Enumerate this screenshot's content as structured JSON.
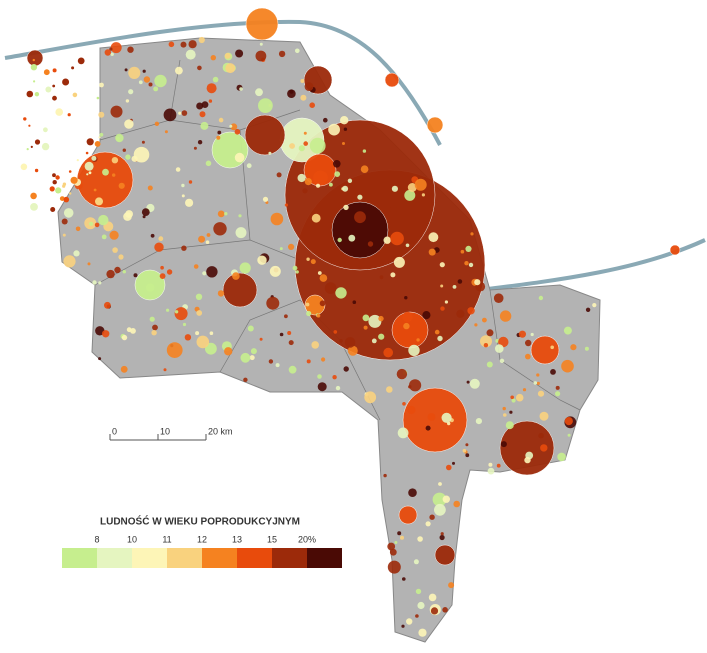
{
  "legend": {
    "title": "LUDNOŚĆ W WIEKU POPRODUKCYJNYM",
    "labels": [
      "8",
      "10",
      "11",
      "12",
      "13",
      "15",
      "20%"
    ],
    "colors": [
      "#c6ee8e",
      "#e5f5c0",
      "#fdf5b7",
      "#f9d27e",
      "#f58220",
      "#e84b0c",
      "#9c2a0a",
      "#4a0a05"
    ]
  },
  "scale_bar": {
    "labels": [
      "0",
      "10",
      "20 km"
    ]
  }
}
